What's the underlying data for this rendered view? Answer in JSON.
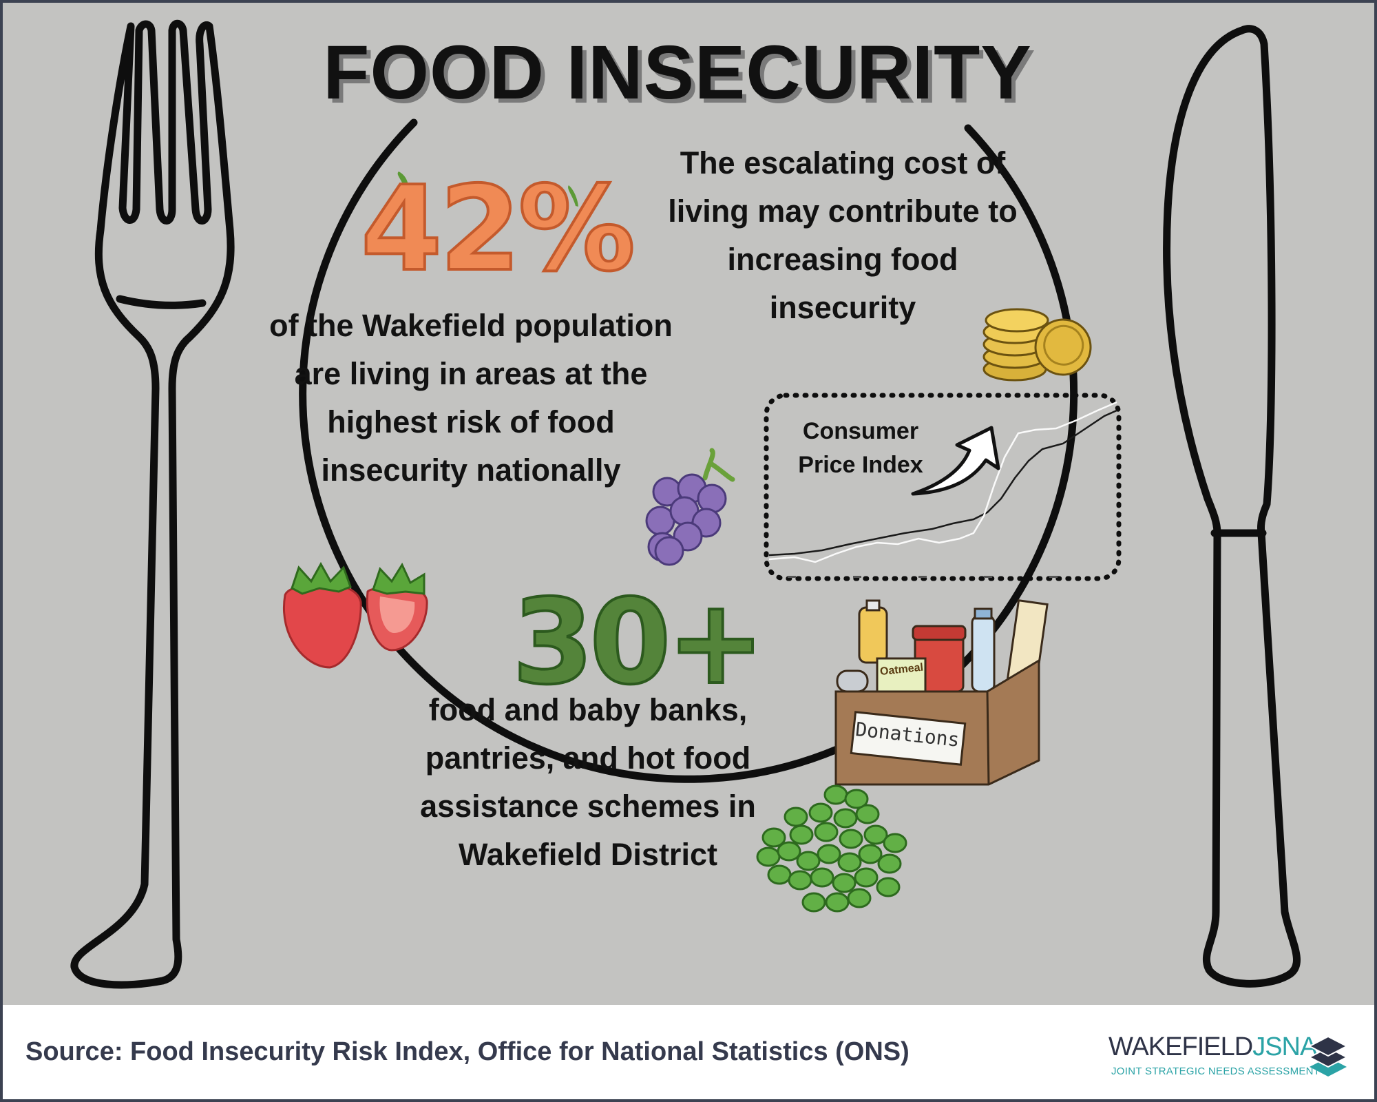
{
  "title": "FOOD INSECURITY",
  "stat_a": {
    "value": "42%",
    "text": "of the Wakefield population are living in areas at the highest risk of food insecurity nationally"
  },
  "cost_of_living": {
    "text": "The escalating cost of living may contribute to increasing food insecurity",
    "chart_label": "Consumer Price Index"
  },
  "stat_b": {
    "value": "30+",
    "text": "food and baby banks, pantries, and hot food assistance schemes in Wakefield District"
  },
  "illustration_labels": {
    "box": "Donations",
    "oat_packet": "Oatmeal"
  },
  "source": "Source: Food Insecurity Risk Index, Office for National Statistics (ONS)",
  "logo": {
    "main": "WAKEFIELD",
    "accent": "JSNA",
    "subtitle": "JOINT STRATEGIC NEEDS ASSESSMENT"
  },
  "colors": {
    "panel_background": "#c3c3c1",
    "stat_42": "#f08a55",
    "stat_30": "#54843a",
    "footer_text": "#353a4d",
    "logo_accent": "#2ba3a6"
  },
  "icons": [
    "fork-icon",
    "knife-icon",
    "plate-icon",
    "carrot-icon",
    "grapes-icon",
    "strawberry-icon",
    "coins-icon",
    "donation-box-icon",
    "peas-icon",
    "rising-arrow-icon",
    "jsna-layers-icon"
  ]
}
